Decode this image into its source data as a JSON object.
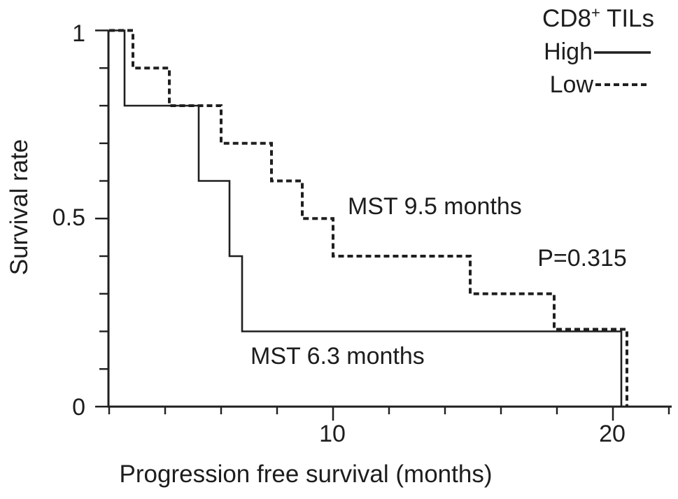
{
  "legend": {
    "title_base": "CD8",
    "title_sup": "+",
    "title_rest": " TILs",
    "position": "top-right",
    "items": [
      {
        "label": "High",
        "line_style": "solid"
      },
      {
        "label": "Low",
        "line_style": "dashed"
      }
    ]
  },
  "colors": {
    "background": "#ffffff",
    "line": "#1f1f1f",
    "text": "#1d1d1d"
  },
  "chart_data": {
    "type": "line",
    "variant": "kaplan_meier_step",
    "title": "",
    "xlabel": "Progression free survival (months)",
    "ylabel": "Survival rate",
    "xlim": [
      2,
      22.1
    ],
    "ylim": [
      0,
      1
    ],
    "grid": false,
    "x_major_ticks": [
      {
        "value": 10,
        "label": "10"
      },
      {
        "value": 20,
        "label": "20"
      }
    ],
    "x_minor_ticks": [
      2,
      4,
      6,
      8,
      12,
      14,
      16,
      18,
      22
    ],
    "y_major_ticks": [
      {
        "value": 1,
        "label": "1"
      },
      {
        "value": 0.5,
        "label": "0.5"
      },
      {
        "value": 0,
        "label": "0"
      }
    ],
    "y_minor_ticks": [
      0.9,
      0.8,
      0.7,
      0.6,
      0.4,
      0.3,
      0.2,
      0.1
    ],
    "series": [
      {
        "name": "High",
        "line_style": "solid",
        "points": [
          [
            2,
            1.0
          ],
          [
            2.55,
            1.0
          ],
          [
            2.55,
            0.8
          ],
          [
            5.2,
            0.8
          ],
          [
            5.2,
            0.6
          ],
          [
            6.3,
            0.6
          ],
          [
            6.3,
            0.4
          ],
          [
            6.75,
            0.4
          ],
          [
            6.75,
            0.2
          ],
          [
            20.3,
            0.2
          ],
          [
            20.3,
            0.0
          ]
        ]
      },
      {
        "name": "Low",
        "line_style": "dashed",
        "points": [
          [
            2,
            1.0
          ],
          [
            2.85,
            1.0
          ],
          [
            2.85,
            0.9
          ],
          [
            4.15,
            0.9
          ],
          [
            4.15,
            0.8
          ],
          [
            6.0,
            0.8
          ],
          [
            6.0,
            0.7
          ],
          [
            7.8,
            0.7
          ],
          [
            7.8,
            0.6
          ],
          [
            8.9,
            0.6
          ],
          [
            8.9,
            0.5
          ],
          [
            10.0,
            0.5
          ],
          [
            10.0,
            0.4
          ],
          [
            14.9,
            0.4
          ],
          [
            14.9,
            0.3
          ],
          [
            17.9,
            0.3
          ],
          [
            17.9,
            0.2
          ],
          [
            20.5,
            0.2
          ],
          [
            20.5,
            0.0
          ]
        ]
      }
    ],
    "annotations": [
      {
        "text": "MST 9.5 months",
        "x": 10.5,
        "y": 0.53,
        "align": "left",
        "refers_to": "Low"
      },
      {
        "text": "MST 6.3 months",
        "x": 7.05,
        "y": 0.14,
        "align": "left",
        "refers_to": "High"
      },
      {
        "text": "P=0.315",
        "x": 18.9,
        "y": 0.4,
        "align": "center",
        "refers_to": "comparison"
      }
    ]
  }
}
